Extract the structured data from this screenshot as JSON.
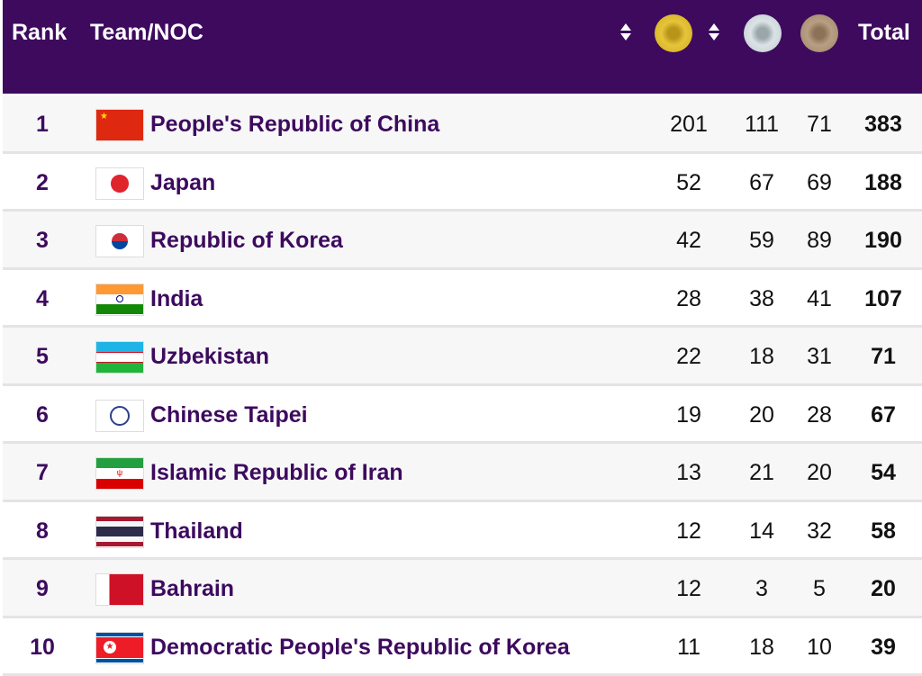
{
  "header": {
    "rank": "Rank",
    "team": "Team/NOC",
    "total": "Total",
    "gold_icon": "gold-medal-icon",
    "silver_icon": "silver-medal-icon",
    "bronze_icon": "bronze-medal-icon"
  },
  "colors": {
    "header_bg": "#3d0a5e",
    "gold": "#d8b52a",
    "silver": "#c9d3d6",
    "bronze": "#a88d70"
  },
  "rows": [
    {
      "rank": "1",
      "team": "People's Republic of China",
      "gold": "201",
      "silver": "111",
      "bronze": "71",
      "total": "383",
      "flag": "chn"
    },
    {
      "rank": "2",
      "team": "Japan",
      "gold": "52",
      "silver": "67",
      "bronze": "69",
      "total": "188",
      "flag": "jpn"
    },
    {
      "rank": "3",
      "team": "Republic of Korea",
      "gold": "42",
      "silver": "59",
      "bronze": "89",
      "total": "190",
      "flag": "kor"
    },
    {
      "rank": "4",
      "team": "India",
      "gold": "28",
      "silver": "38",
      "bronze": "41",
      "total": "107",
      "flag": "ind"
    },
    {
      "rank": "5",
      "team": "Uzbekistan",
      "gold": "22",
      "silver": "18",
      "bronze": "31",
      "total": "71",
      "flag": "uzb"
    },
    {
      "rank": "6",
      "team": "Chinese Taipei",
      "gold": "19",
      "silver": "20",
      "bronze": "28",
      "total": "67",
      "flag": "tpe"
    },
    {
      "rank": "7",
      "team": "Islamic Republic of Iran",
      "gold": "13",
      "silver": "21",
      "bronze": "20",
      "total": "54",
      "flag": "iri"
    },
    {
      "rank": "8",
      "team": "Thailand",
      "gold": "12",
      "silver": "14",
      "bronze": "32",
      "total": "58",
      "flag": "tha"
    },
    {
      "rank": "9",
      "team": "Bahrain",
      "gold": "12",
      "silver": "3",
      "bronze": "5",
      "total": "20",
      "flag": "brn"
    },
    {
      "rank": "10",
      "team": "Democratic People's Republic of Korea",
      "gold": "11",
      "silver": "18",
      "bronze": "10",
      "total": "39",
      "flag": "prk"
    }
  ]
}
